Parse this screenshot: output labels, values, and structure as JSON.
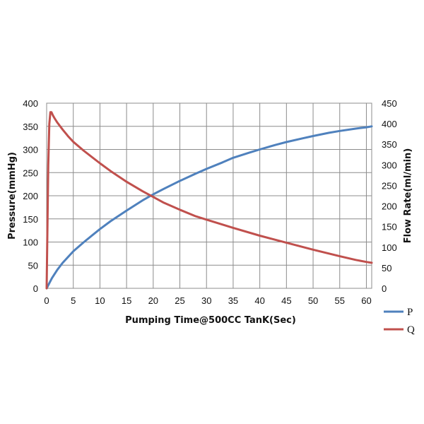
{
  "chart_data": {
    "type": "line",
    "xlabel": "Pumping Time@500CC TanK(Sec)",
    "ylabel_left": "Pressure(mmHg)",
    "ylabel_right": "Flow Rate(ml/min)",
    "xlim": [
      0,
      61
    ],
    "ylim_left": [
      0,
      400
    ],
    "ylim_right": [
      0,
      450
    ],
    "x_ticks": [
      "0",
      "5",
      "10",
      "15",
      "20",
      "25",
      "30",
      "35",
      "40",
      "45",
      "50",
      "55",
      "60"
    ],
    "y_ticks_left": [
      "0",
      "50",
      "100",
      "150",
      "200",
      "250",
      "300",
      "350",
      "400"
    ],
    "y_ticks_right": [
      "0",
      "50",
      "100",
      "150",
      "200",
      "250",
      "300",
      "350",
      "400",
      "450"
    ],
    "grid": true,
    "legend_position": "bottom-right",
    "series": [
      {
        "name": "P",
        "axis": "left",
        "color": "#4f81bd",
        "x": [
          0,
          1,
          2,
          3,
          5,
          7,
          10,
          12,
          15,
          18,
          20,
          22,
          25,
          28,
          30,
          33,
          35,
          38,
          40,
          43,
          45,
          48,
          50,
          53,
          55,
          58,
          60,
          61
        ],
        "y": [
          0,
          22,
          40,
          55,
          80,
          100,
          128,
          145,
          168,
          190,
          203,
          215,
          232,
          248,
          258,
          272,
          282,
          293,
          300,
          310,
          316,
          324,
          329,
          336,
          340,
          345,
          348,
          350
        ]
      },
      {
        "name": "Q",
        "axis": "right",
        "color": "#c0504d",
        "x": [
          0,
          0.3,
          0.5,
          0.7,
          0.9,
          1.2,
          1.5,
          2,
          3,
          4,
          5,
          7,
          10,
          12,
          15,
          18,
          20,
          22,
          25,
          28,
          30,
          35,
          40,
          45,
          50,
          55,
          58,
          60,
          61
        ],
        "y": [
          0,
          300,
          400,
          428,
          428,
          420,
          413,
          403,
          386,
          370,
          356,
          334,
          304,
          285,
          259,
          236,
          222,
          208,
          191,
          175,
          167,
          147,
          128,
          111,
          94,
          78,
          69,
          64,
          62
        ]
      }
    ]
  }
}
